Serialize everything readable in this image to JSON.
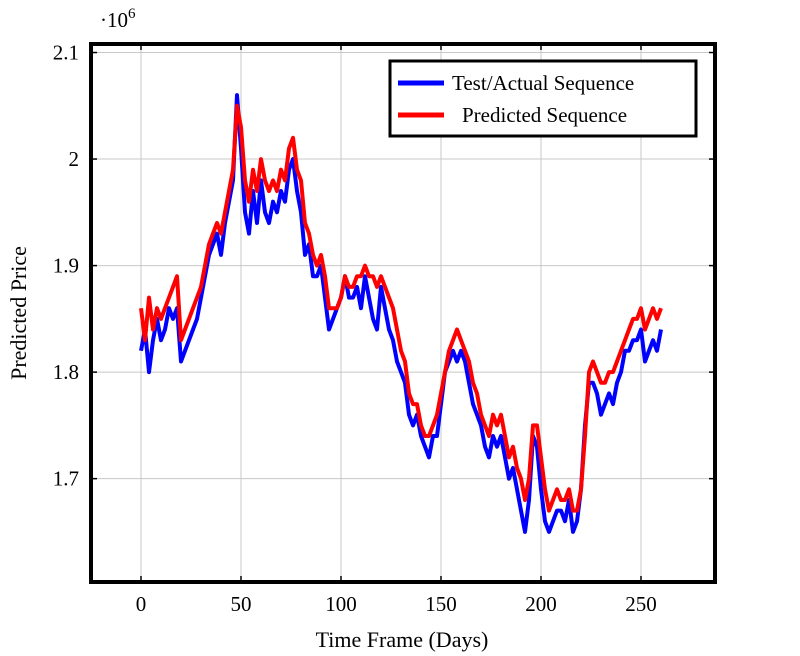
{
  "chart_data": {
    "type": "line",
    "title": "",
    "xlabel": "Time Frame (Days)",
    "ylabel": "Predicted Price",
    "y_multiplier_label": "·10",
    "y_multiplier_exponent": "6",
    "xlim": [
      -25,
      287
    ],
    "ylim": [
      1.603,
      2.108
    ],
    "x_ticks": [
      0,
      50,
      100,
      150,
      200,
      250
    ],
    "x_tick_labels": [
      "0",
      "50",
      "100",
      "150",
      "200",
      "250"
    ],
    "y_ticks": [
      1.7,
      1.8,
      1.9,
      2.0,
      2.1
    ],
    "y_tick_labels": [
      "1.7",
      "1.8",
      "1.9",
      "2",
      "2.1"
    ],
    "grid": true,
    "legend_position": "top-right",
    "series": [
      {
        "name": "Test/Actual Sequence",
        "color": "#0000ff",
        "x": [
          0,
          2,
          4,
          6,
          8,
          10,
          12,
          14,
          16,
          18,
          20,
          22,
          24,
          26,
          28,
          30,
          32,
          34,
          36,
          38,
          40,
          42,
          44,
          46,
          48,
          50,
          52,
          54,
          56,
          58,
          60,
          62,
          64,
          66,
          68,
          70,
          72,
          74,
          76,
          78,
          80,
          82,
          84,
          86,
          88,
          90,
          92,
          94,
          96,
          98,
          100,
          102,
          104,
          106,
          108,
          110,
          112,
          114,
          116,
          118,
          120,
          122,
          124,
          126,
          128,
          130,
          132,
          134,
          136,
          138,
          140,
          142,
          144,
          146,
          148,
          150,
          152,
          154,
          156,
          158,
          160,
          162,
          164,
          166,
          168,
          170,
          172,
          174,
          176,
          178,
          180,
          182,
          184,
          186,
          188,
          190,
          192,
          194,
          196,
          198,
          200,
          202,
          204,
          206,
          208,
          210,
          212,
          214,
          216,
          218,
          220,
          222,
          224,
          226,
          228,
          230,
          232,
          234,
          236,
          238,
          240,
          242,
          244,
          246,
          248,
          250,
          252,
          254,
          256,
          258,
          260
        ],
        "values": [
          1.82,
          1.84,
          1.8,
          1.83,
          1.85,
          1.83,
          1.84,
          1.86,
          1.85,
          1.86,
          1.81,
          1.82,
          1.83,
          1.84,
          1.85,
          1.87,
          1.89,
          1.91,
          1.92,
          1.93,
          1.91,
          1.94,
          1.96,
          1.98,
          2.06,
          2.01,
          1.95,
          1.93,
          1.97,
          1.94,
          1.98,
          1.95,
          1.94,
          1.96,
          1.95,
          1.97,
          1.96,
          1.99,
          2.0,
          1.97,
          1.95,
          1.91,
          1.92,
          1.89,
          1.89,
          1.9,
          1.87,
          1.84,
          1.85,
          1.86,
          1.87,
          1.89,
          1.87,
          1.87,
          1.88,
          1.86,
          1.89,
          1.87,
          1.85,
          1.84,
          1.88,
          1.86,
          1.84,
          1.83,
          1.81,
          1.8,
          1.79,
          1.76,
          1.75,
          1.76,
          1.74,
          1.73,
          1.72,
          1.74,
          1.74,
          1.77,
          1.8,
          1.81,
          1.82,
          1.81,
          1.82,
          1.81,
          1.79,
          1.77,
          1.76,
          1.75,
          1.73,
          1.72,
          1.74,
          1.73,
          1.74,
          1.72,
          1.7,
          1.71,
          1.69,
          1.67,
          1.65,
          1.68,
          1.74,
          1.73,
          1.69,
          1.66,
          1.65,
          1.66,
          1.67,
          1.67,
          1.66,
          1.68,
          1.65,
          1.66,
          1.69,
          1.75,
          1.79,
          1.79,
          1.78,
          1.76,
          1.77,
          1.78,
          1.77,
          1.79,
          1.8,
          1.82,
          1.82,
          1.83,
          1.83,
          1.84,
          1.81,
          1.82,
          1.83,
          1.82,
          1.84
        ]
      },
      {
        "name": "Predicted Sequence",
        "color": "#ff0000",
        "x": [
          0,
          2,
          4,
          6,
          8,
          10,
          12,
          14,
          16,
          18,
          20,
          22,
          24,
          26,
          28,
          30,
          32,
          34,
          36,
          38,
          40,
          42,
          44,
          46,
          48,
          50,
          52,
          54,
          56,
          58,
          60,
          62,
          64,
          66,
          68,
          70,
          72,
          74,
          76,
          78,
          80,
          82,
          84,
          86,
          88,
          90,
          92,
          94,
          96,
          98,
          100,
          102,
          104,
          106,
          108,
          110,
          112,
          114,
          116,
          118,
          120,
          122,
          124,
          126,
          128,
          130,
          132,
          134,
          136,
          138,
          140,
          142,
          144,
          146,
          148,
          150,
          152,
          154,
          156,
          158,
          160,
          162,
          164,
          166,
          168,
          170,
          172,
          174,
          176,
          178,
          180,
          182,
          184,
          186,
          188,
          190,
          192,
          194,
          196,
          198,
          200,
          202,
          204,
          206,
          208,
          210,
          212,
          214,
          216,
          218,
          220,
          222,
          224,
          226,
          228,
          230,
          232,
          234,
          236,
          238,
          240,
          242,
          244,
          246,
          248,
          250,
          252,
          254,
          256,
          258,
          260
        ],
        "values": [
          1.86,
          1.83,
          1.87,
          1.84,
          1.86,
          1.85,
          1.86,
          1.87,
          1.88,
          1.89,
          1.83,
          1.84,
          1.85,
          1.86,
          1.87,
          1.88,
          1.9,
          1.92,
          1.93,
          1.94,
          1.93,
          1.95,
          1.97,
          1.99,
          2.05,
          2.03,
          1.98,
          1.96,
          1.99,
          1.97,
          2.0,
          1.98,
          1.97,
          1.98,
          1.97,
          1.99,
          1.98,
          2.01,
          2.02,
          1.99,
          1.98,
          1.94,
          1.93,
          1.91,
          1.9,
          1.91,
          1.89,
          1.86,
          1.86,
          1.86,
          1.87,
          1.89,
          1.88,
          1.88,
          1.89,
          1.89,
          1.9,
          1.89,
          1.89,
          1.88,
          1.89,
          1.88,
          1.87,
          1.86,
          1.84,
          1.82,
          1.81,
          1.78,
          1.77,
          1.77,
          1.75,
          1.74,
          1.74,
          1.75,
          1.76,
          1.78,
          1.8,
          1.82,
          1.83,
          1.84,
          1.83,
          1.82,
          1.81,
          1.79,
          1.78,
          1.76,
          1.75,
          1.74,
          1.76,
          1.75,
          1.76,
          1.74,
          1.72,
          1.73,
          1.71,
          1.7,
          1.68,
          1.7,
          1.75,
          1.75,
          1.72,
          1.69,
          1.67,
          1.68,
          1.69,
          1.68,
          1.68,
          1.69,
          1.67,
          1.67,
          1.69,
          1.74,
          1.8,
          1.81,
          1.8,
          1.79,
          1.79,
          1.8,
          1.8,
          1.81,
          1.82,
          1.83,
          1.84,
          1.85,
          1.85,
          1.86,
          1.84,
          1.85,
          1.86,
          1.85,
          1.86
        ]
      }
    ]
  }
}
